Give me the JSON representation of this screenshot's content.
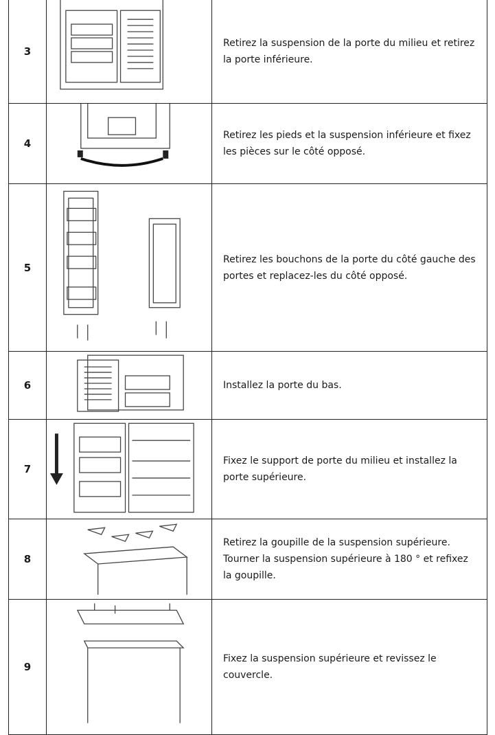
{
  "table": {
    "rows": [
      {
        "step": "3",
        "text": "Retirez la suspension de la porte du milieu et retirez la porte inférieure."
      },
      {
        "step": "4",
        "text": "Retirez les pieds et la suspension inférieure et fixez les pièces sur le côté opposé."
      },
      {
        "step": "5",
        "text": "Retirez les bouchons de la porte du côté gauche des portes et replacez-les du côté opposé."
      },
      {
        "step": "6",
        "text": "Installez la porte du bas."
      },
      {
        "step": "7",
        "text": "Fixez le support de porte du milieu et installez la porte supérieure."
      },
      {
        "step": "8",
        "text": "Retirez la goupille de la suspension supérieure. Tourner la suspension supérieure à 180 ° et refixez la goupille."
      },
      {
        "step": "9",
        "text": "Fixez la suspension supérieure et revissez le couvercle."
      }
    ]
  }
}
